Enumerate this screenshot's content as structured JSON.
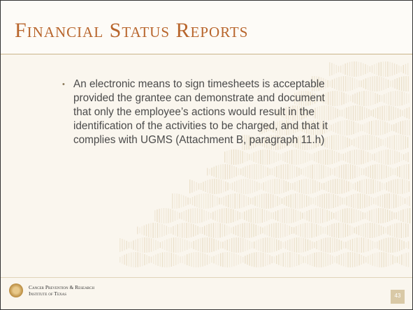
{
  "header": {
    "title": "Financial Status Reports"
  },
  "body": {
    "bullets": [
      "An electronic means to sign timesheets is acceptable provided the grantee can demonstrate and document that only the employee’s actions would result in the identification of the activities to be charged, and that it complies with UGMS (Attachment B, paragraph 11.h)"
    ]
  },
  "footer": {
    "organization": [
      "Cancer Prevention & Research",
      "Institute of Texas"
    ],
    "page_number": "43"
  }
}
